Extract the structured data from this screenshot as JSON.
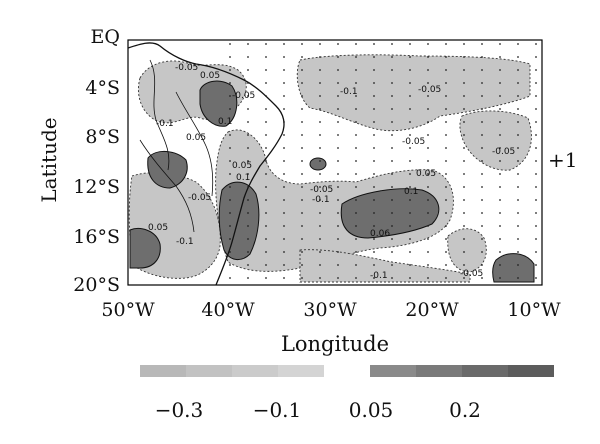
{
  "map": {
    "axes": {
      "latitude_ticks": [
        "EQ",
        "4°S",
        "8°S",
        "12°S",
        "16°S",
        "20°S"
      ],
      "longitude_ticks": [
        "50°W",
        "40°W",
        "30°W",
        "20°W",
        "10°W"
      ],
      "y_label": "Latitude",
      "x_label": "Longitude"
    },
    "panel_label": "+1",
    "contour_labels": [
      "-0.05",
      "0.05",
      "-0.1",
      "0.1",
      "-0.05",
      "0.05",
      "-0.1",
      "-0.05",
      "-0.05",
      "-0.05",
      "0.05",
      "-0.05",
      "0.1",
      "-0.05",
      "-0.1",
      "0.1",
      "0.05",
      "-0.1",
      "0.05",
      "0.06",
      "-0.1",
      "-0.05"
    ],
    "colorbar": {
      "tick_labels": [
        "−0.3",
        "−0.1",
        "0.05",
        "0.2"
      ],
      "negative_colors": [
        "#b8b8b8",
        "#c2c2c2",
        "#cbcbcb",
        "#d4d4d4"
      ],
      "positive_colors": [
        "#8a8a8a",
        "#7a7a7a",
        "#6a6a6a",
        "#5c5c5c"
      ]
    },
    "colors": {
      "negative_shade": "#c6c6c6",
      "positive_shade": "#6e6e6e",
      "outline": "#1a1a1a"
    }
  }
}
